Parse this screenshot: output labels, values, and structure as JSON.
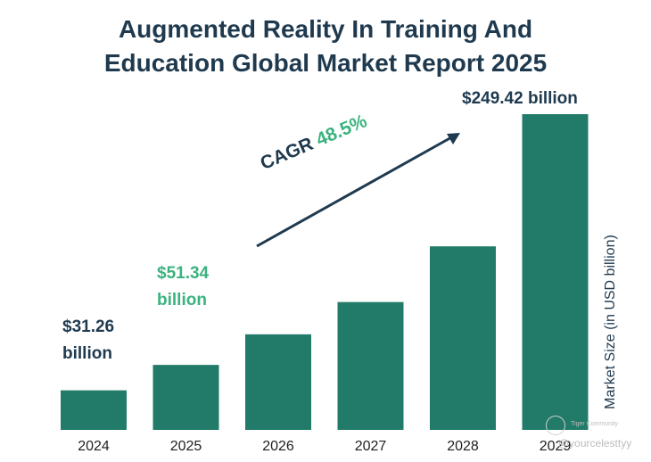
{
  "chart_data": {
    "type": "bar",
    "title_lines": [
      "Augmented Reality In Training And",
      "Education Global Market Report 2025"
    ],
    "categories": [
      "2024",
      "2025",
      "2026",
      "2027",
      "2028",
      "2029"
    ],
    "values": [
      31.26,
      51.34,
      75.5,
      101.0,
      145.0,
      249.42
    ],
    "ylim": [
      0,
      255
    ],
    "ylabel": "Market Size (in USD billion)",
    "xlabel": "",
    "bar_color": "#227b69",
    "annotations": {
      "label_2024": [
        "$31.26",
        "billion"
      ],
      "label_2025": [
        "$51.34",
        "billion"
      ],
      "label_2029": "$249.42 billion",
      "cagr_text": "CAGR",
      "cagr_value": "48.5%"
    }
  },
  "colors": {
    "title": "#1f3a4f",
    "accent_green": "#3bb37f",
    "bar": "#227b69"
  },
  "watermark": {
    "brand": "Tiger Community",
    "handle": "@yourcelesttyy"
  }
}
